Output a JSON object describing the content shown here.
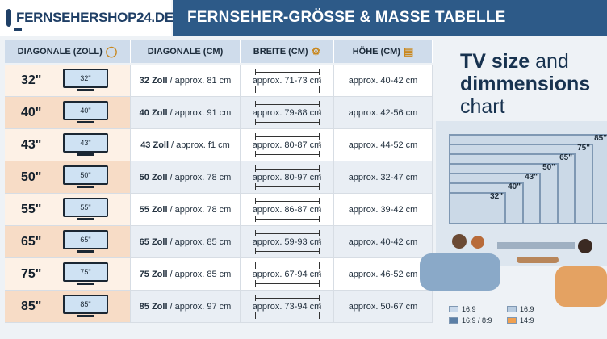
{
  "header": {
    "logo_text": "FERNSEHERSHOP24.DE",
    "banner_title": "FERNSEHER-GRÖSSE & MASSE TABELLE"
  },
  "table": {
    "columns": [
      "DIAGONALE (ZOLL)",
      "DIAGONALE (CM)",
      "BREITE (CM)",
      "HÖHE (CM)"
    ],
    "rows": [
      {
        "size": "32\"",
        "tv_label": "32\"",
        "diag_bold": "32 Zoll",
        "diag_rest": "/ approx. 81 cm",
        "width": "approx. 71-73 cm",
        "height": "approx. 40-42 cm"
      },
      {
        "size": "40\"",
        "tv_label": "40\"",
        "diag_bold": "40 Zoll",
        "diag_rest": "/ approx. 91 cm",
        "width": "approx. 79-88 cm",
        "height": "approx. 42-56 cm"
      },
      {
        "size": "43\"",
        "tv_label": "43\"",
        "diag_bold": "43 Zoll",
        "diag_rest": "/ approx. f1 cm",
        "width": "approx. 80-87 cm",
        "height": "approx. 44-52 cm"
      },
      {
        "size": "50\"",
        "tv_label": "50\"",
        "diag_bold": "50 Zoll",
        "diag_rest": "/ approx. 78 cm",
        "width": "approx. 80-97 cm",
        "height": "approx. 32-47 cm"
      },
      {
        "size": "55\"",
        "tv_label": "55\"",
        "diag_bold": "55 Zoll",
        "diag_rest": "/ approx. 78 cm",
        "width": "approx. 86-87 cm",
        "height": "approx. 39-42 cm"
      },
      {
        "size": "65\"",
        "tv_label": "65\"",
        "diag_bold": "65 Zoll",
        "diag_rest": "/ approx. 85 cm",
        "width": "approx. 59-93 cm",
        "height": "approx. 40-42 cm"
      },
      {
        "size": "75\"",
        "tv_label": "75\"",
        "diag_bold": "75 Zoll",
        "diag_rest": "/ approx. 85 cm",
        "width": "approx. 67-94 cm",
        "height": "approx. 46-52 cm"
      },
      {
        "size": "85\"",
        "tv_label": "85\"",
        "diag_bold": "85 Zoll",
        "diag_rest": "/ approx. 97 cm",
        "width": "approx. 73-94 cm",
        "height": "approx. 50-67 cm"
      }
    ]
  },
  "side": {
    "title_bold": "TV size",
    "title_and": "and",
    "title_line2": "dimmensions",
    "title_line3": "chart",
    "size_labels": [
      "32\"",
      "40\"",
      "43\"",
      "50\"",
      "65\"",
      "75\"",
      "85\""
    ],
    "legend": [
      "16:9",
      "16:9",
      "16:9 / 8:9",
      "14:9"
    ]
  },
  "colors": {
    "banner": "#2d5a88",
    "logo_text": "#1f3f66",
    "header_row": "#cfdceb",
    "size_highlight": "#f7dcc6",
    "legend_orange": "#f0a050"
  }
}
